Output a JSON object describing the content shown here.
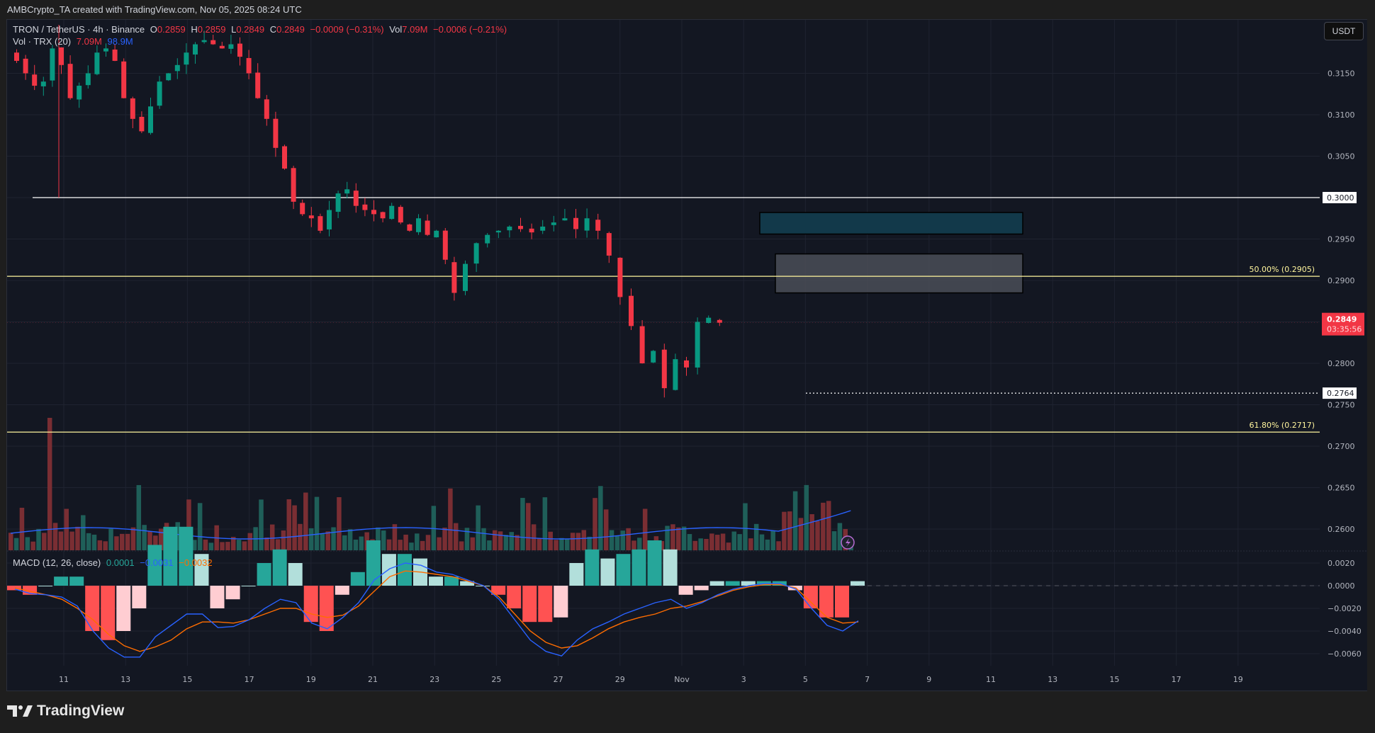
{
  "header": {
    "credit": "AMBCrypto_TA created with TradingView.com, Nov 05, 2025 08:24 UTC"
  },
  "legend": {
    "symbol": "TRON / TetherUS · 4h · Binance",
    "open_label": "O",
    "open": "0.2859",
    "high_label": "H",
    "high": "0.2859",
    "low_label": "L",
    "low": "0.2849",
    "close_label": "C",
    "close": "0.2849",
    "change": "−0.0009 (−0.31%)",
    "vol_label": "Vol",
    "vol": "7.09M",
    "vol_change": "−0.0006 (−0.21%)",
    "volume_indicator": "Vol · TRX (20)",
    "volume_value": "7.09M",
    "volume_ma": "98.9M",
    "macd_label": "MACD (12, 26, close)",
    "macd_hist": "0.0001",
    "macd_line": "−0.0031",
    "macd_signal": "−0.0032"
  },
  "currency_button": "USDT",
  "footer": {
    "brand": "TradingView"
  },
  "colors": {
    "background": "#131722",
    "up": "#089981",
    "down": "#f23645",
    "volume_up": "#1f5f59",
    "volume_down": "#7a2e33",
    "volume_ma": "#2962ff",
    "macd_line": "#2962ff",
    "signal_line": "#ff6d00",
    "fib": "#fff59d",
    "level": "#ffffff",
    "zone_teal": "#12394a",
    "zone_gray": "#4a4d57"
  },
  "chart_data": {
    "type": "candlestick",
    "title": "TRON / TetherUS · 4h · Binance",
    "xlabel": "",
    "ylabel": "USDT",
    "x_ticks": [
      "11",
      "13",
      "15",
      "17",
      "19",
      "21",
      "23",
      "25",
      "27",
      "29",
      "Nov",
      "3",
      "5",
      "7",
      "9",
      "11",
      "13",
      "15",
      "17",
      "19"
    ],
    "y_ticks": [
      "0.3150",
      "0.3100",
      "0.3050",
      "0.3000",
      "0.2950",
      "0.2900",
      "0.2800",
      "0.2750",
      "0.2700",
      "0.2650",
      "0.2600"
    ],
    "ylim": [
      0.2575,
      0.3185
    ],
    "last_price": "0.2849",
    "countdown": "03:35:56",
    "marked_levels": [
      {
        "label": "0.3000",
        "value": 0.3,
        "style": "solid-white"
      },
      {
        "label": "0.2764",
        "value": 0.2764,
        "style": "dotted-white"
      }
    ],
    "fibonacci": [
      {
        "label": "50.00% (0.2905)",
        "value": 0.2905
      },
      {
        "label": "61.80% (0.2717)",
        "value": 0.2717
      }
    ],
    "zones": [
      {
        "name": "teal-supply-zone",
        "top": 0.2982,
        "bottom": 0.2956,
        "from": "Nov 2",
        "to": "Nov 11"
      },
      {
        "name": "gray-fvg-zone",
        "top": 0.2932,
        "bottom": 0.2885,
        "from": "Nov 3",
        "to": "Nov 11"
      }
    ],
    "price_path_close": [
      0.3165,
      0.315,
      0.3135,
      0.314,
      0.318,
      0.316,
      0.312,
      0.3135,
      0.315,
      0.3175,
      0.318,
      0.3165,
      0.312,
      0.3095,
      0.308,
      0.311,
      0.314,
      0.315,
      0.316,
      0.3175,
      0.3185,
      0.319,
      0.3185,
      0.318,
      0.3185,
      0.317,
      0.315,
      0.312,
      0.3095,
      0.306,
      0.3035,
      0.2995,
      0.298,
      0.2975,
      0.296,
      0.2985,
      0.3005,
      0.301,
      0.299,
      0.2985,
      0.298,
      0.2975,
      0.299,
      0.297,
      0.296,
      0.2975,
      0.2955,
      0.296,
      0.2925,
      0.2885,
      0.292,
      0.2945,
      0.2955,
      0.296,
      0.2965,
      0.2962,
      0.2958,
      0.2965,
      0.297,
      0.2975,
      0.2962,
      0.2975,
      0.296,
      0.293,
      0.288,
      0.2845,
      0.28,
      0.2815,
      0.277,
      0.2805,
      0.2795,
      0.285,
      0.2855,
      0.2849
    ],
    "macd": {
      "ylim": [
        -0.0068,
        0.0024
      ],
      "y_ticks": [
        "0.0020",
        "0.0000",
        "−0.0020",
        "−0.0040",
        "−0.0060"
      ],
      "macd_line": [
        -0.0003,
        -0.0007,
        -0.0008,
        -0.001,
        -0.0018,
        -0.004,
        -0.0055,
        -0.0063,
        -0.0063,
        -0.0045,
        -0.0035,
        -0.0025,
        -0.0025,
        -0.0037,
        -0.0036,
        -0.003,
        -0.002,
        -0.0012,
        -0.0015,
        -0.0033,
        -0.0038,
        -0.0028,
        -0.0015,
        0.0005,
        0.0015,
        0.002,
        0.0018,
        0.0012,
        0.001,
        0.0005,
        0.0,
        -0.0012,
        -0.003,
        -0.0048,
        -0.0058,
        -0.0062,
        -0.0048,
        -0.0038,
        -0.0032,
        -0.0025,
        -0.002,
        -0.0015,
        -0.0012,
        -0.002,
        -0.0015,
        -0.0008,
        -0.0003,
        0.0,
        0.0002,
        0.0002,
        -0.0003,
        -0.002,
        -0.0035,
        -0.004,
        -0.0031
      ],
      "signal_line": [
        -0.0002,
        -0.0005,
        -0.0008,
        -0.0012,
        -0.002,
        -0.003,
        -0.0043,
        -0.0053,
        -0.0058,
        -0.0054,
        -0.0048,
        -0.0038,
        -0.0032,
        -0.0032,
        -0.0033,
        -0.003,
        -0.0025,
        -0.002,
        -0.002,
        -0.0025,
        -0.0028,
        -0.0026,
        -0.0018,
        -0.0005,
        0.0008,
        0.0013,
        0.0012,
        0.001,
        0.0008,
        0.0004,
        0.0,
        -0.001,
        -0.0025,
        -0.004,
        -0.005,
        -0.0055,
        -0.0053,
        -0.0046,
        -0.0038,
        -0.0032,
        -0.0028,
        -0.0025,
        -0.002,
        -0.0018,
        -0.0014,
        -0.0009,
        -0.0004,
        -0.0001,
        0.0001,
        0.0001,
        -0.0002,
        -0.0015,
        -0.0028,
        -0.0033,
        -0.0032
      ]
    },
    "volume": {
      "ma_value": "98.9M",
      "last_value": "7.09M"
    }
  }
}
